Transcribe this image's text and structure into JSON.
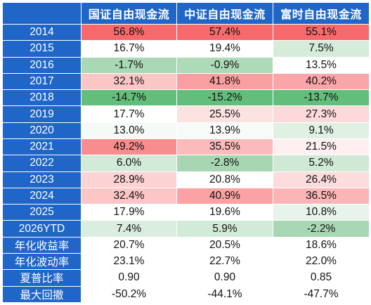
{
  "chart_data": {
    "type": "table",
    "header_color": "#1F66C8",
    "columns": [
      "",
      "国证自由现金流",
      "中证自由现金流",
      "富时自由现金流"
    ],
    "rows": [
      {
        "label": "2014",
        "values": [
          "56.8%",
          "57.4%",
          "55.1%"
        ],
        "fills": [
          "#F8696B",
          "#F8696B",
          "#F8696B"
        ]
      },
      {
        "label": "2015",
        "values": [
          "16.7%",
          "19.4%",
          "7.5%"
        ],
        "fills": [
          "#FFFFFF",
          "#FFFFFF",
          "#D5ECDA"
        ]
      },
      {
        "label": "2016",
        "values": [
          "-1.7%",
          "-0.9%",
          "13.5%"
        ],
        "fills": [
          "#A9D8B4",
          "#ADDAB7",
          "#FFFFFF"
        ]
      },
      {
        "label": "2017",
        "values": [
          "32.1%",
          "41.8%",
          "40.2%"
        ],
        "fills": [
          "#FCC6C7",
          "#FA9FA1",
          "#FAA5A7"
        ]
      },
      {
        "label": "2018",
        "values": [
          "-14.7%",
          "-15.2%",
          "-13.7%"
        ],
        "fills": [
          "#63BE7B",
          "#63BE7B",
          "#63BE7B"
        ]
      },
      {
        "label": "2019",
        "values": [
          "17.7%",
          "25.5%",
          "27.3%"
        ],
        "fills": [
          "#FFFFFF",
          "#FDE2E2",
          "#FCD9DA"
        ]
      },
      {
        "label": "2020",
        "values": [
          "13.0%",
          "13.9%",
          "9.1%"
        ],
        "fills": [
          "#F4FAF5",
          "#F7FBF8",
          "#E0F1E4"
        ]
      },
      {
        "label": "2021",
        "values": [
          "49.2%",
          "35.5%",
          "21.5%"
        ],
        "fills": [
          "#F98C8E",
          "#FBBABC",
          "#FEF0F0"
        ]
      },
      {
        "label": "2022",
        "values": [
          "6.0%",
          "-2.8%",
          "5.2%"
        ],
        "fills": [
          "#D2EBD8",
          "#A6D7B2",
          "#CFE9D5"
        ]
      },
      {
        "label": "2023",
        "values": [
          "28.9%",
          "20.8%",
          "26.4%"
        ],
        "fills": [
          "#FCD2D3",
          "#FFFFFF",
          "#FCDCDD"
        ]
      },
      {
        "label": "2024",
        "values": [
          "32.4%",
          "40.9%",
          "36.5%"
        ],
        "fills": [
          "#FCC5C6",
          "#FAA2A4",
          "#FBB5B7"
        ]
      },
      {
        "label": "2025",
        "values": [
          "17.9%",
          "19.6%",
          "10.8%"
        ],
        "fills": [
          "#FFFFFF",
          "#FFFFFF",
          "#E8F4EB"
        ]
      },
      {
        "label": "2026YTD",
        "values": [
          "7.4%",
          "5.9%",
          "-2.2%"
        ],
        "fills": [
          "#D9EEDE",
          "#D2EBD8",
          "#A8D8B3"
        ]
      },
      {
        "label": "年化收益率",
        "values": [
          "20.7%",
          "20.5%",
          "18.6%"
        ],
        "fills": [
          "#FFFFFF",
          "#FFFFFF",
          "#FFFFFF"
        ]
      },
      {
        "label": "年化波动率",
        "values": [
          "23.1%",
          "22.7%",
          "22.0%"
        ],
        "fills": [
          "#FFFFFF",
          "#FFFFFF",
          "#FFFFFF"
        ]
      },
      {
        "label": "夏普比率",
        "values": [
          "0.90",
          "0.90",
          "0.85"
        ],
        "fills": [
          "#FFFFFF",
          "#FFFFFF",
          "#FFFFFF"
        ]
      },
      {
        "label": "最大回撤",
        "values": [
          "-50.2%",
          "-44.1%",
          "-47.7%"
        ],
        "fills": [
          "#FFFFFF",
          "#FFFFFF",
          "#FFFFFF"
        ]
      }
    ]
  }
}
